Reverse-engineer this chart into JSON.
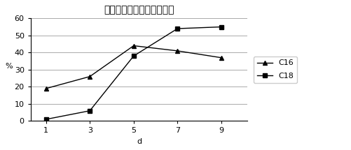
{
  "title": "培养时间对油脂组分的影响",
  "xlabel": "d",
  "ylabel": "%",
  "x": [
    1,
    3,
    5,
    7,
    9
  ],
  "c16_y": [
    19,
    26,
    44,
    41,
    37
  ],
  "c18_y": [
    1,
    6,
    38,
    54,
    55
  ],
  "ylim": [
    0,
    60
  ],
  "yticks": [
    0,
    10,
    20,
    30,
    40,
    50,
    60
  ],
  "xticks": [
    1,
    3,
    5,
    7,
    9
  ],
  "c16_label": "C16",
  "c18_label": "C18",
  "c16_color": "#000000",
  "c18_color": "#000000",
  "bg_color": "#ffffff",
  "grid_color": "#aaaaaa",
  "title_fontsize": 10,
  "axis_fontsize": 8,
  "legend_fontsize": 8
}
